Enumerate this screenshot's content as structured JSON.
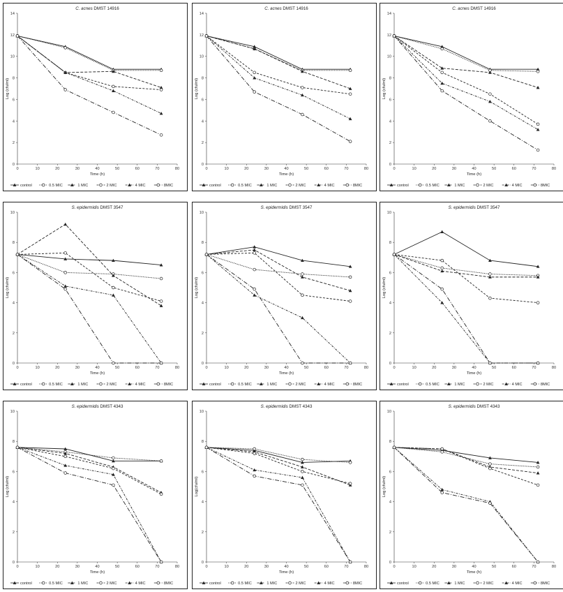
{
  "legend_labels": [
    "control",
    "0.5 MIC",
    "1 MIC",
    "2 MIC",
    "4 MIC",
    "8MIC"
  ],
  "chart_data": [
    {
      "type": "line",
      "title_italic": "C. acnes",
      "title_rest": " DMST 14916",
      "xlabel": "Time (h)",
      "ylabel": "Log (cfu/ml)",
      "xlim": [
        0,
        80
      ],
      "ylim": [
        0,
        14
      ],
      "xticks": [
        0,
        10,
        20,
        30,
        40,
        50,
        60,
        70,
        80
      ],
      "yticks": [
        0,
        2,
        4,
        6,
        8,
        10,
        12,
        14
      ],
      "x": [
        0,
        24,
        48,
        72
      ],
      "series": [
        {
          "name": "control",
          "values": [
            11.9,
            10.9,
            8.8,
            8.8
          ]
        },
        {
          "name": "0.5 MIC",
          "values": [
            11.9,
            10.8,
            8.7,
            8.7
          ]
        },
        {
          "name": "1 MIC",
          "values": [
            11.9,
            8.5,
            8.6,
            7.1
          ]
        },
        {
          "name": "2 MIC",
          "values": [
            11.9,
            8.5,
            7.2,
            6.9
          ]
        },
        {
          "name": "4 MIC",
          "values": [
            11.9,
            8.5,
            6.8,
            4.7
          ]
        },
        {
          "name": "8MIC",
          "values": [
            11.9,
            6.9,
            4.8,
            2.7
          ]
        }
      ]
    },
    {
      "type": "line",
      "title_italic": "C. acnes",
      "title_rest": " DMST 14916",
      "xlabel": "Time (h)",
      "ylabel": "Log (cfu/ml)",
      "xlim": [
        0,
        80
      ],
      "ylim": [
        0,
        14
      ],
      "xticks": [
        0,
        10,
        20,
        30,
        40,
        50,
        60,
        70,
        80
      ],
      "yticks": [
        0,
        2,
        4,
        6,
        8,
        10,
        12,
        14
      ],
      "x": [
        0,
        24,
        48,
        72
      ],
      "series": [
        {
          "name": "control",
          "values": [
            11.9,
            10.9,
            8.8,
            8.8
          ]
        },
        {
          "name": "0.5 MIC",
          "values": [
            11.9,
            10.7,
            8.7,
            8.7
          ]
        },
        {
          "name": "1 MIC",
          "values": [
            11.9,
            10.7,
            8.6,
            7.0
          ]
        },
        {
          "name": "2 MIC",
          "values": [
            11.9,
            8.5,
            7.1,
            6.5
          ]
        },
        {
          "name": "4 MIC",
          "values": [
            11.9,
            8.0,
            6.4,
            4.2
          ]
        },
        {
          "name": "8MIC",
          "values": [
            11.9,
            6.7,
            4.6,
            2.1
          ]
        }
      ]
    },
    {
      "type": "line",
      "title_italic": "C. acnes",
      "title_rest": " DMST 14916",
      "xlabel": "Time (h)",
      "ylabel": "Log (cfu/ml)",
      "xlim": [
        0,
        80
      ],
      "ylim": [
        0,
        14
      ],
      "xticks": [
        0,
        10,
        20,
        30,
        40,
        50,
        60,
        70,
        80
      ],
      "yticks": [
        0,
        2,
        4,
        6,
        8,
        10,
        12,
        14
      ],
      "x": [
        0,
        24,
        48,
        72
      ],
      "series": [
        {
          "name": "control",
          "values": [
            11.9,
            10.9,
            8.8,
            8.8
          ]
        },
        {
          "name": "0.5 MIC",
          "values": [
            11.9,
            10.7,
            8.7,
            8.6
          ]
        },
        {
          "name": "1 MIC",
          "values": [
            11.9,
            8.9,
            8.5,
            7.1
          ]
        },
        {
          "name": "2 MIC",
          "values": [
            11.9,
            8.5,
            6.5,
            3.7
          ]
        },
        {
          "name": "4 MIC",
          "values": [
            11.9,
            7.5,
            5.8,
            3.2
          ]
        },
        {
          "name": "8MIC",
          "values": [
            11.9,
            6.8,
            4.0,
            1.3
          ]
        }
      ]
    },
    {
      "type": "line",
      "title_italic": "S. epidermidis",
      "title_rest": " DMST 3547",
      "xlabel": "Time (h)",
      "ylabel": "Log (cfu/ml)",
      "xlim": [
        0,
        80
      ],
      "ylim": [
        0,
        10
      ],
      "xticks": [
        0,
        10,
        20,
        30,
        40,
        50,
        60,
        70,
        80
      ],
      "yticks": [
        0,
        2,
        4,
        6,
        8,
        10
      ],
      "x": [
        0,
        24,
        48,
        72
      ],
      "series": [
        {
          "name": "control",
          "values": [
            7.2,
            6.9,
            6.8,
            6.5
          ]
        },
        {
          "name": "0.5 MIC",
          "values": [
            7.2,
            6.0,
            5.9,
            5.6
          ]
        },
        {
          "name": "1 MIC",
          "values": [
            7.2,
            9.2,
            5.8,
            3.8
          ]
        },
        {
          "name": "2 MIC",
          "values": [
            7.2,
            7.3,
            5.0,
            4.1
          ]
        },
        {
          "name": "4 MIC",
          "values": [
            7.2,
            5.1,
            4.5,
            0
          ]
        },
        {
          "name": "8MIC",
          "values": [
            7.2,
            4.9,
            0,
            0
          ]
        }
      ]
    },
    {
      "type": "line",
      "title_italic": "S. epidermidis",
      "title_rest": " DMST 3547",
      "xlabel": "Time (h)",
      "ylabel": "Log (cfu/ml)",
      "xlim": [
        0,
        80
      ],
      "ylim": [
        0,
        10
      ],
      "xticks": [
        0,
        10,
        20,
        30,
        40,
        50,
        60,
        70,
        80
      ],
      "yticks": [
        0,
        2,
        4,
        6,
        8,
        10
      ],
      "x": [
        0,
        24,
        48,
        72
      ],
      "series": [
        {
          "name": "control",
          "values": [
            7.2,
            7.7,
            6.8,
            6.4
          ]
        },
        {
          "name": "0.5 MIC",
          "values": [
            7.2,
            6.2,
            5.9,
            5.7
          ]
        },
        {
          "name": "1 MIC",
          "values": [
            7.2,
            7.5,
            5.7,
            4.8
          ]
        },
        {
          "name": "2 MIC",
          "values": [
            7.2,
            7.3,
            4.5,
            4.1
          ]
        },
        {
          "name": "4 MIC",
          "values": [
            7.2,
            4.5,
            3.0,
            0
          ]
        },
        {
          "name": "8MIC",
          "values": [
            7.2,
            4.9,
            0,
            0
          ]
        }
      ]
    },
    {
      "type": "line",
      "title_italic": "S. epidermidis",
      "title_rest": " DMST 3547",
      "xlabel": "Time (h)",
      "ylabel": "Log (cfu/ml)",
      "xlim": [
        0,
        80
      ],
      "ylim": [
        0,
        10
      ],
      "xticks": [
        0,
        10,
        20,
        30,
        40,
        50,
        60,
        70,
        80
      ],
      "yticks": [
        0,
        2,
        4,
        6,
        8,
        10
      ],
      "x": [
        0,
        24,
        48,
        72
      ],
      "series": [
        {
          "name": "control",
          "values": [
            7.2,
            8.7,
            6.8,
            6.4
          ]
        },
        {
          "name": "0.5 MIC",
          "values": [
            7.2,
            6.3,
            5.9,
            5.8
          ]
        },
        {
          "name": "1 MIC",
          "values": [
            7.2,
            6.1,
            5.7,
            5.7
          ]
        },
        {
          "name": "2 MIC",
          "values": [
            7.2,
            6.8,
            4.3,
            4.0
          ]
        },
        {
          "name": "4 MIC",
          "values": [
            7.2,
            4.0,
            0,
            0
          ]
        },
        {
          "name": "8MIC",
          "values": [
            7.2,
            4.9,
            0,
            0
          ]
        }
      ]
    },
    {
      "type": "line",
      "title_italic": "S. epidermidis",
      "title_rest": " DMST 4343",
      "xlabel": "Time (h)",
      "ylabel": "Log (cfu/ml)",
      "xlim": [
        0,
        80
      ],
      "ylim": [
        0,
        10
      ],
      "xticks": [
        0,
        10,
        20,
        30,
        40,
        50,
        60,
        70,
        80
      ],
      "yticks": [
        0,
        2,
        4,
        6,
        8,
        10
      ],
      "x": [
        0,
        24,
        48,
        72
      ],
      "series": [
        {
          "name": "control",
          "values": [
            7.6,
            7.5,
            6.7,
            6.7
          ]
        },
        {
          "name": "0.5 MIC",
          "values": [
            7.6,
            7.3,
            6.9,
            6.7
          ]
        },
        {
          "name": "1 MIC",
          "values": [
            7.6,
            7.2,
            6.3,
            4.6
          ]
        },
        {
          "name": "2 MIC",
          "values": [
            7.6,
            7.0,
            6.2,
            4.5
          ]
        },
        {
          "name": "4 MIC",
          "values": [
            7.6,
            6.4,
            5.8,
            0
          ]
        },
        {
          "name": "8MIC",
          "values": [
            7.6,
            5.9,
            5.1,
            0
          ]
        }
      ]
    },
    {
      "type": "line",
      "title_italic": "S. epidermidis",
      "title_rest": " DMST 4343",
      "xlabel": "Time (h)",
      "ylabel": "Log(cfu/ml)",
      "xlim": [
        0,
        80
      ],
      "ylim": [
        0,
        10
      ],
      "xticks": [
        0,
        10,
        20,
        30,
        40,
        50,
        60,
        70,
        80
      ],
      "yticks": [
        0,
        2,
        4,
        6,
        8,
        10
      ],
      "x": [
        0,
        24,
        48,
        72
      ],
      "series": [
        {
          "name": "control",
          "values": [
            7.6,
            7.4,
            6.6,
            6.7
          ]
        },
        {
          "name": "0.5 MIC",
          "values": [
            7.6,
            7.5,
            6.8,
            6.6
          ]
        },
        {
          "name": "1 MIC",
          "values": [
            7.6,
            7.3,
            6.3,
            5.1
          ]
        },
        {
          "name": "2 MIC",
          "values": [
            7.6,
            7.2,
            6.0,
            5.2
          ]
        },
        {
          "name": "4 MIC",
          "values": [
            7.6,
            6.1,
            5.6,
            0
          ]
        },
        {
          "name": "8MIC",
          "values": [
            7.6,
            5.7,
            5.1,
            0
          ]
        }
      ]
    },
    {
      "type": "line",
      "title_italic": "S. epidermidis",
      "title_rest": " DMST 4343",
      "xlabel": "Time (h)",
      "ylabel": "Log (cfu/ml)",
      "xlim": [
        0,
        80
      ],
      "ylim": [
        0,
        10
      ],
      "xticks": [
        0,
        10,
        20,
        30,
        40,
        50,
        60,
        70,
        80
      ],
      "yticks": [
        0,
        2,
        4,
        6,
        8,
        10
      ],
      "x": [
        0,
        24,
        48,
        72
      ],
      "series": [
        {
          "name": "control",
          "values": [
            7.6,
            7.4,
            6.9,
            6.6
          ]
        },
        {
          "name": "0.5 MIC",
          "values": [
            7.6,
            7.3,
            6.5,
            6.3
          ]
        },
        {
          "name": "1 MIC",
          "values": [
            7.6,
            7.5,
            6.3,
            5.9
          ]
        },
        {
          "name": "2 MIC",
          "values": [
            7.6,
            7.5,
            6.2,
            5.1
          ]
        },
        {
          "name": "4 MIC",
          "values": [
            7.6,
            4.8,
            4.0,
            0
          ]
        },
        {
          "name": "8MIC",
          "values": [
            7.6,
            4.6,
            3.9,
            0
          ]
        }
      ]
    }
  ]
}
